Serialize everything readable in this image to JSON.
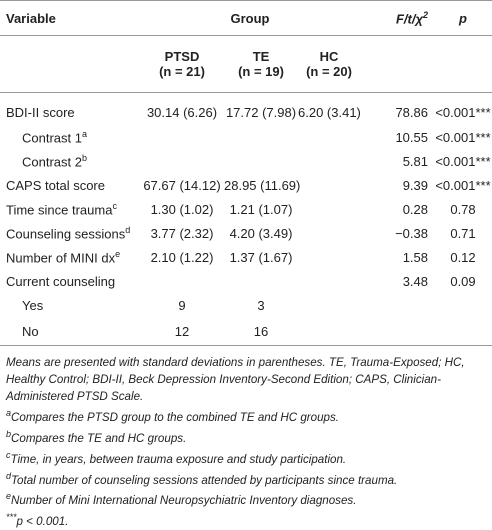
{
  "header": {
    "variable": "Variable",
    "group": "Group",
    "stat": "F/t/χ",
    "stat_sup": "2",
    "p": "p",
    "groups": [
      {
        "name": "PTSD",
        "n": "(n = 21)"
      },
      {
        "name": "TE",
        "n": "(n = 19)"
      },
      {
        "name": "HC",
        "n": "(n = 20)"
      }
    ]
  },
  "table": {
    "rows": [
      {
        "label": "BDI-II score",
        "ptsd": "30.14 (6.26)",
        "te": "17.72 (7.98)",
        "hc": "6.20 (3.41)",
        "stat": "78.86",
        "p": "<0.001***"
      },
      {
        "label": "Contrast 1",
        "sup": "a",
        "stat": "10.55",
        "p": "<0.001***"
      },
      {
        "label": "Contrast 2",
        "sup": "b",
        "stat": "5.81",
        "p": "<0.001***"
      },
      {
        "label": "CAPS total score",
        "ptsd": "67.67 (14.12)",
        "te": "28.95 (11.69)",
        "stat": "9.39",
        "p": "<0.001***"
      },
      {
        "label": "Time since trauma",
        "sup": "c",
        "ptsd": "1.30 (1.02)",
        "te": "1.21 (1.07)",
        "stat": "0.28",
        "p": "0.78"
      },
      {
        "label": "Counseling sessions",
        "sup": "d",
        "ptsd": "3.77 (2.32)",
        "te": "4.20 (3.49)",
        "stat": "−0.38",
        "p": "0.71"
      },
      {
        "label": "Number of MINI dx",
        "sup": "e",
        "ptsd": "2.10 (1.22)",
        "te": "1.37 (1.67)",
        "stat": "1.58",
        "p": "0.12"
      },
      {
        "label": "Current counseling",
        "stat": "3.48",
        "p": "0.09"
      },
      {
        "label": "Yes",
        "ptsd": "9",
        "te": "3"
      },
      {
        "label": "No",
        "ptsd": "12",
        "te": "16"
      }
    ]
  },
  "notes": "Means are presented with standard deviations in parentheses. TE, Trauma-Exposed; HC, Healthy Control; BDI-II, Beck Depression Inventory-Second Edition; CAPS, Clinician-Administered PTSD Scale.",
  "footnotes": [
    {
      "mark": "a",
      "text": "Compares the PTSD group to the combined TE and HC groups."
    },
    {
      "mark": "b",
      "text": "Compares the TE and HC groups."
    },
    {
      "mark": "c",
      "text": "Time, in years, between trauma exposure and study participation."
    },
    {
      "mark": "d",
      "text": "Total number of counseling sessions attended by participants since trauma."
    },
    {
      "mark": "e",
      "text": "Number of Mini International Neuropsychiatric Inventory diagnoses."
    },
    {
      "mark": "***",
      "text": "p < 0.001."
    }
  ]
}
